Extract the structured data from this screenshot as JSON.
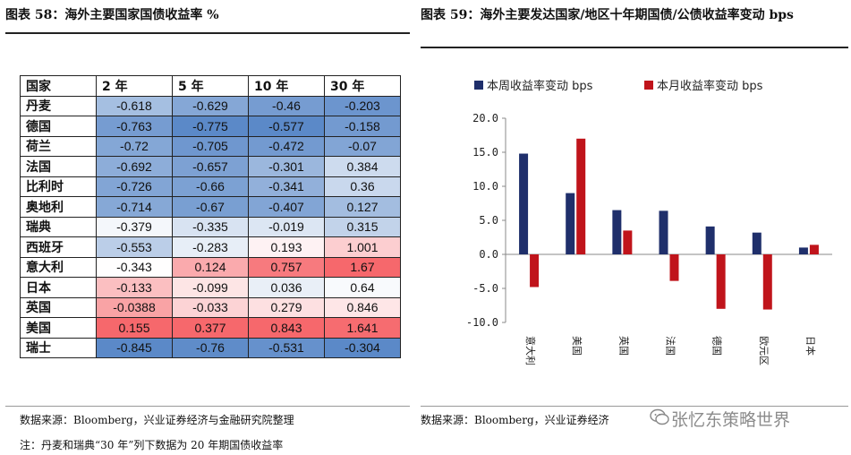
{
  "left": {
    "title": "图表 58：海外主要国家国债收益率  %",
    "headers": [
      "国家",
      "2 年",
      "5 年",
      "10 年",
      "30 年"
    ],
    "rows": [
      {
        "country": "丹麦",
        "values": [
          "-0.618",
          "-0.629",
          "-0.46",
          "-0.203"
        ]
      },
      {
        "country": "德国",
        "values": [
          "-0.763",
          "-0.775",
          "-0.577",
          "-0.158"
        ]
      },
      {
        "country": "荷兰",
        "values": [
          "-0.72",
          "-0.705",
          "-0.472",
          "-0.07"
        ]
      },
      {
        "country": "法国",
        "values": [
          "-0.692",
          "-0.657",
          "-0.301",
          "0.384"
        ]
      },
      {
        "country": "比利时",
        "values": [
          "-0.726",
          "-0.66",
          "-0.341",
          "0.36"
        ]
      },
      {
        "country": "奥地利",
        "values": [
          "-0.714",
          "-0.67",
          "-0.407",
          "0.127"
        ]
      },
      {
        "country": "瑞典",
        "values": [
          "-0.379",
          "-0.335",
          "-0.019",
          "0.315"
        ]
      },
      {
        "country": "西班牙",
        "values": [
          "-0.553",
          "-0.283",
          "0.193",
          "1.001"
        ]
      },
      {
        "country": "意大利",
        "values": [
          "-0.343",
          "0.124",
          "0.757",
          "1.67"
        ]
      },
      {
        "country": "日本",
        "values": [
          "-0.133",
          "-0.099",
          "0.036",
          "0.64"
        ]
      },
      {
        "country": "英国",
        "values": [
          "-0.0388",
          "-0.033",
          "0.279",
          "0.846"
        ]
      },
      {
        "country": "美国",
        "values": [
          "0.155",
          "0.377",
          "0.843",
          "1.641"
        ]
      },
      {
        "country": "瑞士",
        "values": [
          "-0.845",
          "-0.76",
          "-0.531",
          "-0.304"
        ]
      }
    ],
    "source": "数据来源：Bloomberg，兴业证券经济与金融研究院整理",
    "note": "注：丹麦和瑞典“30 年”列下数据为 20 年期国债收益率"
  },
  "right": {
    "title": "图表 59：海外主要发达国家/地区十年期国债/公债收益率变动  bps",
    "source": "数据来源：Bloomberg，兴业证券经济",
    "watermark": "张忆东策略世界",
    "colors": {
      "week": "#1f2f6b",
      "month": "#c0141b"
    },
    "chart_data": {
      "type": "bar",
      "categories": [
        "意大利",
        "美国",
        "英国",
        "法国",
        "德国",
        "欧元区",
        "日本"
      ],
      "series": [
        {
          "name": "本周收益率变动 bps",
          "values": [
            14.8,
            9.0,
            6.5,
            6.4,
            4.1,
            3.2,
            1.0
          ]
        },
        {
          "name": "本月收益率变动 bps",
          "values": [
            -4.8,
            17.0,
            3.5,
            -3.9,
            -8.0,
            -8.1,
            1.4
          ]
        }
      ],
      "yticks": [
        "20.0",
        "15.0",
        "10.0",
        "5.0",
        "0.0",
        "-5.0",
        "-10.0"
      ],
      "ylim": [
        -10,
        20
      ],
      "legend_position": "top"
    }
  }
}
